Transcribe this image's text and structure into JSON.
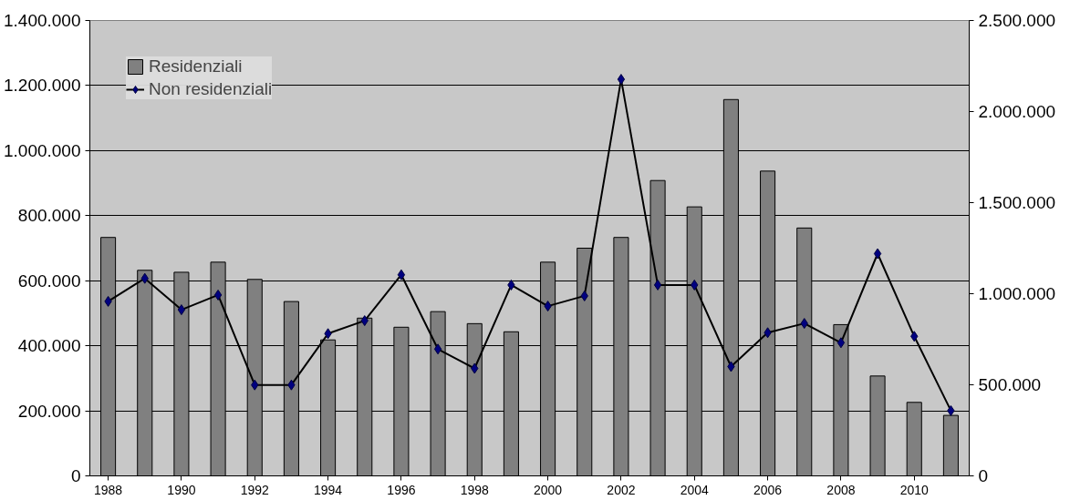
{
  "chart_data": {
    "type": "bar",
    "categories": [
      "1988",
      null,
      "1990",
      null,
      "1992",
      null,
      "1994",
      null,
      "1996",
      null,
      "1998",
      null,
      "2000",
      null,
      "2002",
      null,
      "2004",
      null,
      "2006",
      null,
      "2008",
      null,
      "2010",
      null
    ],
    "series": [
      {
        "name": "Residenziali",
        "color": "#808080",
        "values": [
          733000,
          632000,
          626000,
          657000,
          604000,
          536000,
          418000,
          485000,
          457000,
          505000,
          468000,
          443000,
          657000,
          700000,
          733000,
          908000,
          827000,
          1157000,
          937000,
          762000,
          465000,
          307000,
          226000,
          186000
        ]
      },
      {
        "name": "Non residenziali",
        "type": "line",
        "axis": "y2",
        "color": "#000000",
        "marker": "diamond",
        "line_style": "solid",
        "values": [
          958000,
          1084000,
          912000,
          993000,
          499000,
          499000,
          781000,
          852000,
          1104000,
          696000,
          590000,
          1048000,
          932000,
          988000,
          2177000,
          1048000,
          1048000,
          600000,
          786000,
          837000,
          731000,
          1220000,
          766000,
          358000
        ]
      }
    ],
    "ylim": [
      0,
      1400000
    ],
    "yticks": [
      0,
      {
        "value": 200000,
        "label": "200.000"
      },
      {
        "value": 400000,
        "label": "400.000"
      },
      {
        "value": 600000,
        "label": "600.000"
      },
      {
        "value": 800000,
        "label": "800.000"
      },
      {
        "value": 1000000,
        "label": "1.000.000"
      },
      {
        "value": 1200000,
        "label": "1.200.000"
      },
      {
        "value": 1400000,
        "label": "1.400.000"
      }
    ],
    "y2lim": [
      0,
      2500000
    ],
    "y2ticks": [
      0,
      {
        "value": 500000,
        "label": "500.000"
      },
      {
        "value": 1000000,
        "label": "1.000.000"
      },
      {
        "value": 1500000,
        "label": "1.500.000"
      },
      {
        "value": 2000000,
        "label": "2.000.000"
      },
      {
        "value": 2500000,
        "label": "2.500.000"
      }
    ],
    "grid": "y",
    "legend": "top left"
  }
}
